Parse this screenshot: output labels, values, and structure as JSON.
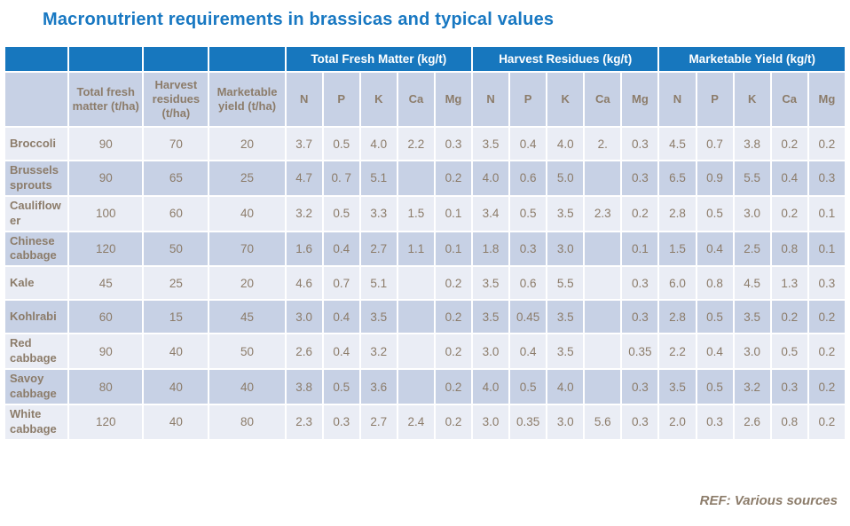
{
  "slide": {
    "title": "Macronutrient requirements in brassicas and typical values",
    "footer": "REF: Various sources"
  },
  "colors": {
    "title_blue": "#1878C2",
    "header_blue": "#1777BE",
    "light_row": "#EAEDF5",
    "dark_row": "#C7D1E5",
    "text_brown": "#8C7C6A",
    "group_text": "#FFFFFF"
  },
  "table": {
    "group_headers": [
      "Total Fresh Matter (kg/t)",
      "Harvest Residues (kg/t)",
      "Marketable Yield (kg/t)"
    ],
    "base_headers": [
      "Total fresh matter (t/ha)",
      "Harvest residues (t/ha)",
      "Marketable yield (t/ha)"
    ],
    "nutrient_headers": [
      "N",
      "P",
      "K",
      "Ca",
      "Mg"
    ],
    "rows": [
      {
        "crop": "Broccoli",
        "base": [
          "90",
          "70",
          "20"
        ],
        "tfm": [
          "3.7",
          "0.5",
          "4.0",
          "2.2",
          "0.3"
        ],
        "hr": [
          "3.5",
          "0.4",
          "4.0",
          "2.",
          "0.3"
        ],
        "my": [
          "4.5",
          "0.7",
          "3.8",
          "0.2",
          "0.2"
        ]
      },
      {
        "crop": "Brussels sprouts",
        "base": [
          "90",
          "65",
          "25"
        ],
        "tfm": [
          "4.7",
          "0. 7",
          "5.1",
          "",
          "0.2"
        ],
        "hr": [
          "4.0",
          "0.6",
          "5.0",
          "",
          "0.3"
        ],
        "my": [
          "6.5",
          "0.9",
          "5.5",
          "0.4",
          "0.3"
        ]
      },
      {
        "crop": "Cauliflower",
        "base": [
          "100",
          "60",
          "40"
        ],
        "tfm": [
          "3.2",
          "0.5",
          "3.3",
          "1.5",
          "0.1"
        ],
        "hr": [
          "3.4",
          "0.5",
          "3.5",
          "2.3",
          "0.2"
        ],
        "my": [
          "2.8",
          "0.5",
          "3.0",
          "0.2",
          "0.1"
        ]
      },
      {
        "crop": "Chinese cabbage",
        "base": [
          "120",
          "50",
          "70"
        ],
        "tfm": [
          "1.6",
          "0.4",
          "2.7",
          "1.1",
          "0.1"
        ],
        "hr": [
          "1.8",
          "0.3",
          "3.0",
          "",
          "0.1"
        ],
        "my": [
          "1.5",
          "0.4",
          "2.5",
          "0.8",
          "0.1"
        ]
      },
      {
        "crop": "Kale",
        "base": [
          "45",
          "25",
          "20"
        ],
        "tfm": [
          "4.6",
          "0.7",
          "5.1",
          "",
          "0.2"
        ],
        "hr": [
          "3.5",
          "0.6",
          "5.5",
          "",
          "0.3"
        ],
        "my": [
          "6.0",
          "0.8",
          "4.5",
          "1.3",
          "0.3"
        ]
      },
      {
        "crop": "Kohlrabi",
        "base": [
          "60",
          "15",
          "45"
        ],
        "tfm": [
          "3.0",
          "0.4",
          "3.5",
          "",
          "0.2"
        ],
        "hr": [
          "3.5",
          "0.45",
          "3.5",
          "",
          "0.3"
        ],
        "my": [
          "2.8",
          "0.5",
          "3.5",
          "0.2",
          "0.2"
        ]
      },
      {
        "crop": "Red cabbage",
        "base": [
          "90",
          "40",
          "50"
        ],
        "tfm": [
          "2.6",
          "0.4",
          "3.2",
          "",
          "0.2"
        ],
        "hr": [
          "3.0",
          "0.4",
          "3.5",
          "",
          "0.35"
        ],
        "my": [
          "2.2",
          "0.4",
          "3.0",
          "0.5",
          "0.2"
        ]
      },
      {
        "crop": "Savoy cabbage",
        "base": [
          "80",
          "40",
          "40"
        ],
        "tfm": [
          "3.8",
          "0.5",
          "3.6",
          "",
          "0.2"
        ],
        "hr": [
          "4.0",
          "0.5",
          "4.0",
          "",
          "0.3"
        ],
        "my": [
          "3.5",
          "0.5",
          "3.2",
          "0.3",
          "0.2"
        ]
      },
      {
        "crop": "White cabbage",
        "base": [
          "120",
          "40",
          "80"
        ],
        "tfm": [
          "2.3",
          "0.3",
          "2.7",
          "2.4",
          "0.2"
        ],
        "hr": [
          "3.0",
          "0.35",
          "3.0",
          "5.6",
          "0.3"
        ],
        "my": [
          "2.0",
          "0.3",
          "2.6",
          "0.8",
          "0.2"
        ]
      }
    ]
  }
}
